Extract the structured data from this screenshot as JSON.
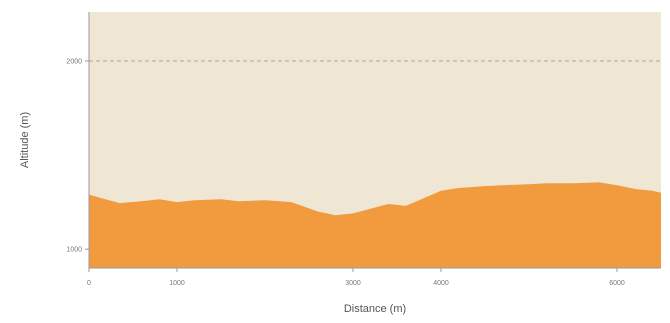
{
  "chart_data": {
    "type": "area",
    "title": "",
    "xlabel": "Distance (m)",
    "ylabel": "Altitude (m)",
    "xlim": [
      0,
      6500
    ],
    "ylim": [
      900,
      2260
    ],
    "xticks": [
      0,
      1000,
      3000,
      4000,
      6000
    ],
    "xtick_labels": [
      "0",
      "1000",
      "3000",
      "4000",
      "6000"
    ],
    "yticks": [
      1000,
      2000
    ],
    "ytick_labels": [
      "1000",
      "2000"
    ],
    "reference_line": {
      "y": 2000,
      "style": "dashed"
    },
    "grid": false,
    "legend": "none",
    "colors": {
      "plot_background": "#efe6d4",
      "fill": "#f19a3e",
      "reference_line": "#b5a58e",
      "axis": "#999999"
    },
    "series": [
      {
        "x": [
          0,
          150,
          350,
          600,
          800,
          1000,
          1200,
          1500,
          1700,
          2000,
          2300,
          2600,
          2800,
          3000,
          3200,
          3400,
          3600,
          3800,
          4000,
          4200,
          4500,
          4700,
          5000,
          5200,
          5500,
          5800,
          6000,
          6200,
          6400,
          6500
        ],
        "y": [
          1290,
          1270,
          1245,
          1255,
          1265,
          1250,
          1260,
          1265,
          1255,
          1260,
          1250,
          1200,
          1180,
          1190,
          1215,
          1240,
          1230,
          1270,
          1310,
          1325,
          1335,
          1340,
          1345,
          1350,
          1350,
          1355,
          1340,
          1320,
          1310,
          1300
        ]
      }
    ]
  }
}
